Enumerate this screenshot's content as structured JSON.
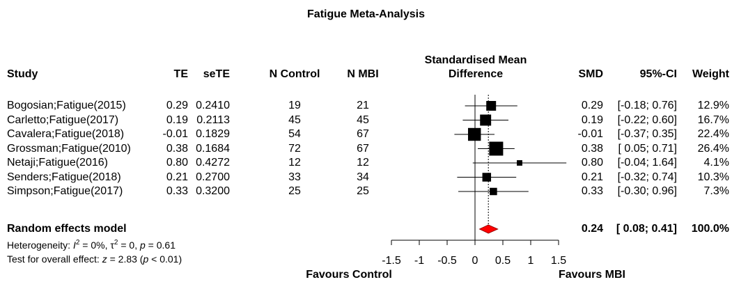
{
  "chart_data": {
    "type": "forest",
    "title": "Fatigue Meta-Analysis",
    "headers": {
      "study": "Study",
      "te": "TE",
      "sete": "seTE",
      "n_control": "N Control",
      "n_mbi": "N MBI",
      "plot_line1": "Standardised Mean",
      "plot_line2": "Difference",
      "smd": "SMD",
      "ci": "95%-CI",
      "weight": "Weight"
    },
    "studies": [
      {
        "study": "Bogosian;Fatigue(2015)",
        "te": "0.29",
        "sete": "0.2410",
        "n_control": "19",
        "n_mbi": "21",
        "smd": 0.29,
        "lower": -0.18,
        "upper": 0.76,
        "smd_text": "0.29",
        "ci_text": "[-0.18; 0.76]",
        "weight_text": "12.9%",
        "weight": 12.9
      },
      {
        "study": "Carletto;Fatigue(2017)",
        "te": "0.19",
        "sete": "0.2113",
        "n_control": "45",
        "n_mbi": "45",
        "smd": 0.19,
        "lower": -0.22,
        "upper": 0.6,
        "smd_text": "0.19",
        "ci_text": "[-0.22; 0.60]",
        "weight_text": "16.7%",
        "weight": 16.7
      },
      {
        "study": "Cavalera;Fatigue(2018)",
        "te": "-0.01",
        "sete": "0.1829",
        "n_control": "54",
        "n_mbi": "67",
        "smd": -0.01,
        "lower": -0.37,
        "upper": 0.35,
        "smd_text": "-0.01",
        "ci_text": "[-0.37; 0.35]",
        "weight_text": "22.4%",
        "weight": 22.4
      },
      {
        "study": "Grossman;Fatigue(2010)",
        "te": "0.38",
        "sete": "0.1684",
        "n_control": "72",
        "n_mbi": "67",
        "smd": 0.38,
        "lower": 0.05,
        "upper": 0.71,
        "smd_text": "0.38",
        "ci_text": "[ 0.05; 0.71]",
        "weight_text": "26.4%",
        "weight": 26.4
      },
      {
        "study": "Netaji;Fatigue(2016)",
        "te": "0.80",
        "sete": "0.4272",
        "n_control": "12",
        "n_mbi": "12",
        "smd": 0.8,
        "lower": -0.04,
        "upper": 1.64,
        "smd_text": "0.80",
        "ci_text": "[-0.04; 1.64]",
        "weight_text": "4.1%",
        "weight": 4.1
      },
      {
        "study": "Senders;Fatigue(2018)",
        "te": "0.21",
        "sete": "0.2700",
        "n_control": "33",
        "n_mbi": "34",
        "smd": 0.21,
        "lower": -0.32,
        "upper": 0.74,
        "smd_text": "0.21",
        "ci_text": "[-0.32; 0.74]",
        "weight_text": "10.3%",
        "weight": 10.3
      },
      {
        "study": "Simpson;Fatigue(2017)",
        "te": "0.33",
        "sete": "0.3200",
        "n_control": "25",
        "n_mbi": "25",
        "smd": 0.33,
        "lower": -0.3,
        "upper": 0.96,
        "smd_text": "0.33",
        "ci_text": "[-0.30; 0.96]",
        "weight_text": "7.3%",
        "weight": 7.3
      }
    ],
    "pooled": {
      "label": "Random effects model",
      "smd": 0.24,
      "lower": 0.08,
      "upper": 0.41,
      "smd_text": "0.24",
      "ci_text": "[ 0.08; 0.41]",
      "weight_text": "100.0%"
    },
    "heterogeneity": {
      "prefix": "Heterogeneity: ",
      "i_symbol": "I",
      "i_sup": "2",
      "i_value": " = 0%, ",
      "tau_symbol": "τ",
      "tau_sup": "2",
      "tau_value": " = 0, ",
      "p_symbol": "p",
      "p_value": " = 0.61"
    },
    "overall_test": {
      "prefix": "Test for overall effect: ",
      "z_symbol": "z",
      "z_value": " = 2.83 (",
      "p_symbol": "p",
      "p_value": " < 0.01)"
    },
    "x_axis": {
      "ticks": [
        -1.5,
        -1,
        -0.5,
        0,
        0.5,
        1,
        1.5
      ],
      "tick_labels": [
        "-1.5",
        "-1",
        "-0.5",
        "0",
        "0.5",
        "1",
        "1.5"
      ],
      "xlim": [
        -1.5,
        1.5
      ],
      "left_label": "Favours Control",
      "right_label": "Favours MBI"
    },
    "colors": {
      "square": "#000000",
      "diamond": "#ff0000",
      "diamond_stroke": "#8b0000",
      "line": "#000000",
      "reference_dotted": "#000000"
    }
  }
}
